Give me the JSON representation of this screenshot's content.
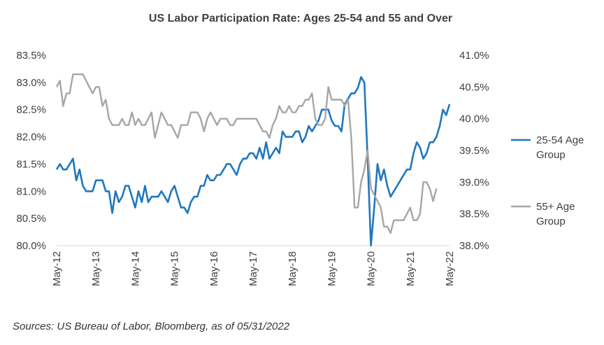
{
  "chart_data": {
    "type": "line",
    "title": "US Labor Participation  Rate: Ages 25-54 and 55 and Over",
    "x_ticks": [
      "May-12",
      "May-13",
      "May-14",
      "May-15",
      "May-16",
      "May-17",
      "May-18",
      "May-19",
      "May-20",
      "May-21",
      "May-22"
    ],
    "left_axis": {
      "min": 80.0,
      "max": 83.5,
      "step": 0.5,
      "ticks": [
        "80.0%",
        "80.5%",
        "81.0%",
        "81.5%",
        "82.0%",
        "82.5%",
        "83.0%",
        "83.5%"
      ]
    },
    "right_axis": {
      "min": 38.0,
      "max": 41.0,
      "step": 0.5,
      "ticks": [
        "38.0%",
        "38.5%",
        "39.0%",
        "39.5%",
        "40.0%",
        "40.5%",
        "41.0%"
      ]
    },
    "legend_position": "right",
    "grid": false,
    "series": [
      {
        "name": "25-54 Age Group",
        "axis": "left",
        "color": "#1f77c0",
        "start": "May-12",
        "values": [
          81.4,
          81.5,
          81.4,
          81.4,
          81.5,
          81.6,
          81.2,
          81.4,
          81.1,
          81.0,
          81.0,
          81.0,
          81.2,
          81.2,
          81.2,
          81.0,
          81.0,
          80.6,
          81.0,
          80.8,
          80.9,
          81.1,
          81.1,
          80.9,
          80.7,
          81.0,
          80.8,
          81.1,
          80.8,
          80.9,
          80.9,
          80.9,
          81.0,
          80.9,
          80.8,
          81.0,
          81.1,
          80.9,
          80.7,
          80.7,
          80.6,
          80.8,
          80.9,
          80.9,
          81.1,
          81.1,
          81.3,
          81.2,
          81.2,
          81.3,
          81.3,
          81.4,
          81.5,
          81.5,
          81.4,
          81.3,
          81.5,
          81.6,
          81.6,
          81.7,
          81.7,
          81.6,
          81.8,
          81.6,
          81.9,
          81.6,
          81.7,
          81.8,
          81.7,
          82.1,
          82.0,
          82.0,
          82.0,
          82.1,
          82.1,
          81.9,
          82.0,
          82.2,
          82.1,
          82.2,
          82.3,
          82.5,
          82.5,
          82.5,
          82.3,
          82.2,
          82.2,
          82.1,
          82.6,
          82.7,
          82.8,
          82.8,
          82.9,
          83.1,
          83.0,
          81.6,
          80.0,
          80.7,
          81.5,
          81.2,
          81.4,
          81.1,
          80.9,
          81.0,
          81.1,
          81.2,
          81.3,
          81.4,
          81.4,
          81.7,
          81.9,
          81.8,
          81.6,
          81.7,
          81.9,
          81.9,
          82.0,
          82.2,
          82.5,
          82.4,
          82.6
        ]
      },
      {
        "name": "55+ Age Group",
        "axis": "right",
        "color": "#a6a6a6",
        "start": "May-12",
        "values": [
          40.5,
          40.6,
          40.2,
          40.4,
          40.4,
          40.7,
          40.7,
          40.7,
          40.7,
          40.6,
          40.5,
          40.4,
          40.5,
          40.5,
          40.2,
          40.3,
          40.0,
          39.9,
          39.9,
          39.9,
          40.0,
          39.9,
          39.9,
          40.1,
          39.9,
          40.0,
          39.9,
          39.9,
          40.0,
          40.1,
          39.7,
          39.9,
          40.1,
          40.0,
          39.9,
          39.9,
          39.8,
          39.7,
          39.9,
          39.9,
          39.9,
          40.1,
          40.1,
          40.1,
          40.0,
          39.8,
          40.0,
          40.1,
          40.0,
          39.9,
          40.0,
          40.0,
          40.0,
          39.9,
          39.9,
          40.0,
          40.0,
          40.0,
          40.0,
          40.0,
          40.0,
          40.0,
          39.9,
          39.8,
          39.8,
          39.7,
          39.9,
          40.0,
          40.2,
          40.1,
          40.1,
          40.2,
          40.1,
          40.1,
          40.2,
          40.2,
          40.3,
          40.3,
          40.4,
          40.0,
          39.9,
          39.9,
          40.0,
          40.5,
          40.3,
          40.3,
          40.3,
          40.3,
          40.2,
          40.3,
          39.7,
          38.6,
          38.6,
          39.0,
          39.2,
          39.5,
          38.9,
          38.8,
          38.7,
          38.6,
          38.3,
          38.3,
          38.2,
          38.4,
          38.4,
          38.4,
          38.4,
          38.5,
          38.6,
          38.4,
          38.4,
          38.5,
          39.0,
          39.0,
          38.9,
          38.7,
          38.9
        ]
      }
    ],
    "source": "Sources: US Bureau of Labor, Bloomberg, as of 05/31/2022"
  }
}
